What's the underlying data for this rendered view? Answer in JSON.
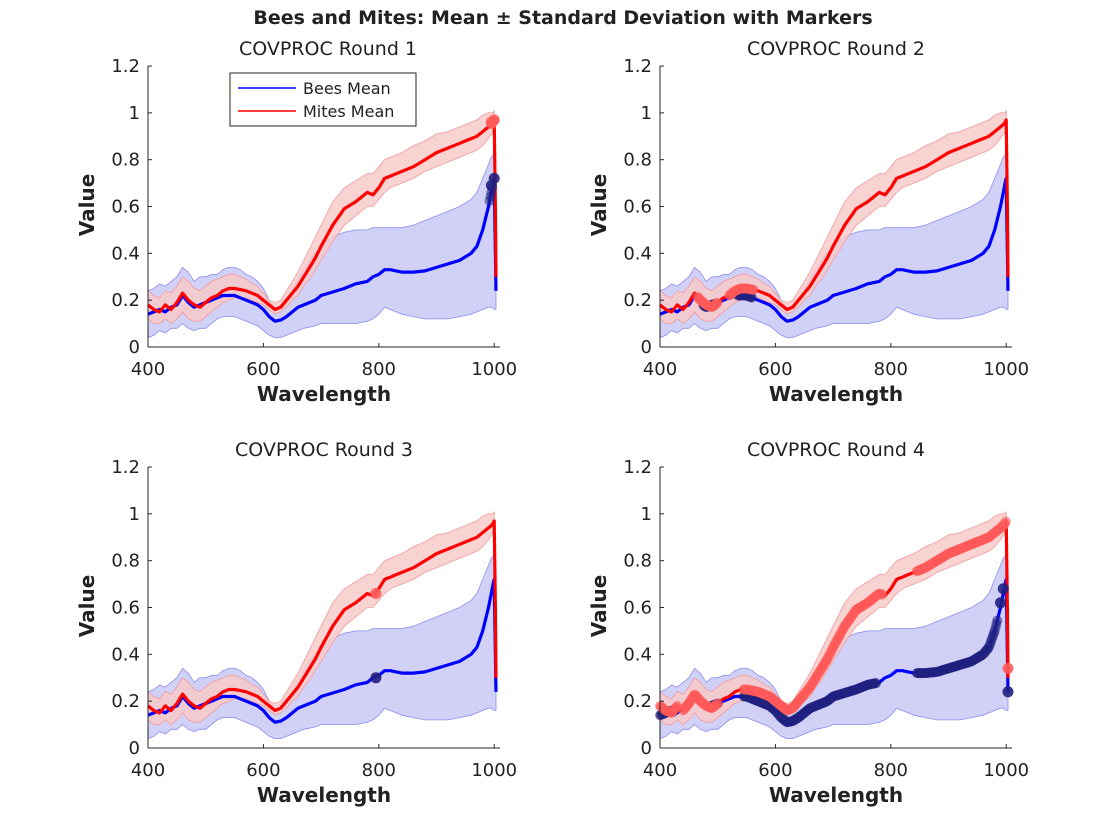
{
  "chart_data": {
    "type": "line",
    "suptitle": "Bees and Mites: Mean ± Standard Deviation with Markers",
    "xlabel": "Wavelength",
    "ylabel": "Value",
    "xlim": [
      400,
      1010
    ],
    "ylim": [
      0,
      1.2
    ],
    "x_ticks": [
      "400",
      "600",
      "800",
      "1000"
    ],
    "y_ticks": [
      "0",
      "0.2",
      "0.4",
      "0.6",
      "0.8",
      "1",
      "1.2"
    ],
    "legend": {
      "placement": "top-left",
      "entries": [
        "Bees Mean",
        "Mites Mean"
      ]
    },
    "colors": {
      "bees": "#0000ff",
      "bees_band": "#c9c9f7",
      "bees_band_edge": "#8c8cee",
      "bees_marker": "#202080",
      "mites": "#ff0000",
      "mites_band": "#f8caca",
      "mites_band_edge": "#f19a9a",
      "mites_marker": "#ff5a5a",
      "axis": "#262626"
    },
    "series": [
      {
        "name": "Bees Mean",
        "x": [
          400,
          410,
          420,
          430,
          440,
          450,
          460,
          470,
          480,
          490,
          500,
          510,
          520,
          530,
          540,
          550,
          560,
          570,
          580,
          590,
          600,
          610,
          620,
          630,
          640,
          650,
          660,
          670,
          680,
          690,
          700,
          720,
          740,
          760,
          780,
          790,
          800,
          810,
          820,
          830,
          840,
          860,
          880,
          900,
          920,
          940,
          960,
          970,
          980,
          990,
          995,
          998,
          1000,
          1002,
          1003
        ],
        "mean": [
          0.14,
          0.15,
          0.16,
          0.15,
          0.17,
          0.18,
          0.22,
          0.19,
          0.17,
          0.18,
          0.19,
          0.2,
          0.21,
          0.22,
          0.22,
          0.22,
          0.21,
          0.2,
          0.19,
          0.18,
          0.16,
          0.13,
          0.11,
          0.115,
          0.13,
          0.15,
          0.17,
          0.18,
          0.19,
          0.2,
          0.22,
          0.235,
          0.25,
          0.27,
          0.28,
          0.3,
          0.31,
          0.33,
          0.33,
          0.325,
          0.32,
          0.32,
          0.325,
          0.34,
          0.355,
          0.37,
          0.4,
          0.43,
          0.5,
          0.6,
          0.66,
          0.7,
          0.72,
          0.4,
          0.24
        ],
        "lower": [
          0.04,
          0.05,
          0.07,
          0.06,
          0.08,
          0.08,
          0.1,
          0.08,
          0.07,
          0.08,
          0.08,
          0.1,
          0.12,
          0.13,
          0.13,
          0.13,
          0.12,
          0.11,
          0.1,
          0.09,
          0.07,
          0.05,
          0.04,
          0.04,
          0.05,
          0.06,
          0.07,
          0.08,
          0.085,
          0.09,
          0.1,
          0.1,
          0.1,
          0.1,
          0.11,
          0.12,
          0.14,
          0.17,
          0.16,
          0.15,
          0.14,
          0.13,
          0.12,
          0.12,
          0.12,
          0.13,
          0.14,
          0.15,
          0.16,
          0.17,
          0.17,
          0.165,
          0.16,
          0.16,
          0.16
        ],
        "upper": [
          0.24,
          0.25,
          0.27,
          0.26,
          0.28,
          0.3,
          0.34,
          0.32,
          0.28,
          0.3,
          0.3,
          0.31,
          0.31,
          0.33,
          0.34,
          0.34,
          0.33,
          0.31,
          0.3,
          0.28,
          0.25,
          0.2,
          0.17,
          0.17,
          0.19,
          0.24,
          0.29,
          0.33,
          0.37,
          0.4,
          0.43,
          0.47,
          0.49,
          0.5,
          0.5,
          0.51,
          0.51,
          0.51,
          0.51,
          0.51,
          0.51,
          0.52,
          0.54,
          0.56,
          0.58,
          0.6,
          0.63,
          0.66,
          0.72,
          0.78,
          0.81,
          0.82,
          0.8,
          0.55,
          0.32
        ]
      },
      {
        "name": "Mites Mean",
        "x": [
          400,
          410,
          420,
          430,
          440,
          450,
          460,
          470,
          480,
          490,
          500,
          510,
          520,
          530,
          540,
          550,
          560,
          570,
          580,
          590,
          600,
          610,
          620,
          630,
          640,
          650,
          660,
          670,
          680,
          690,
          700,
          720,
          740,
          760,
          780,
          790,
          800,
          810,
          820,
          830,
          840,
          860,
          880,
          900,
          920,
          940,
          960,
          970,
          980,
          990,
          995,
          998,
          1000,
          1002,
          1003
        ],
        "mean": [
          0.18,
          0.16,
          0.15,
          0.18,
          0.16,
          0.19,
          0.23,
          0.2,
          0.18,
          0.17,
          0.19,
          0.21,
          0.22,
          0.24,
          0.25,
          0.25,
          0.245,
          0.24,
          0.23,
          0.22,
          0.2,
          0.18,
          0.16,
          0.17,
          0.2,
          0.23,
          0.26,
          0.3,
          0.34,
          0.38,
          0.43,
          0.52,
          0.59,
          0.62,
          0.66,
          0.65,
          0.68,
          0.72,
          0.73,
          0.74,
          0.75,
          0.77,
          0.8,
          0.83,
          0.85,
          0.87,
          0.89,
          0.9,
          0.92,
          0.94,
          0.95,
          0.96,
          0.97,
          0.6,
          0.3
        ],
        "lower": [
          0.12,
          0.1,
          0.1,
          0.12,
          0.1,
          0.12,
          0.15,
          0.12,
          0.11,
          0.11,
          0.13,
          0.15,
          0.17,
          0.19,
          0.2,
          0.21,
          0.21,
          0.21,
          0.2,
          0.19,
          0.18,
          0.16,
          0.14,
          0.15,
          0.17,
          0.2,
          0.22,
          0.26,
          0.29,
          0.33,
          0.37,
          0.45,
          0.52,
          0.56,
          0.6,
          0.6,
          0.63,
          0.66,
          0.68,
          0.69,
          0.7,
          0.72,
          0.75,
          0.77,
          0.79,
          0.81,
          0.83,
          0.84,
          0.86,
          0.89,
          0.91,
          0.92,
          0.93,
          0.55,
          0.26
        ],
        "upper": [
          0.24,
          0.22,
          0.21,
          0.24,
          0.23,
          0.26,
          0.3,
          0.28,
          0.25,
          0.24,
          0.26,
          0.28,
          0.29,
          0.3,
          0.31,
          0.31,
          0.3,
          0.29,
          0.27,
          0.26,
          0.23,
          0.2,
          0.19,
          0.2,
          0.24,
          0.28,
          0.32,
          0.37,
          0.42,
          0.47,
          0.52,
          0.62,
          0.68,
          0.71,
          0.74,
          0.74,
          0.77,
          0.8,
          0.81,
          0.82,
          0.83,
          0.86,
          0.88,
          0.91,
          0.92,
          0.94,
          0.96,
          0.97,
          0.99,
          1.0,
          1.0,
          1.0,
          1.01,
          0.66,
          0.36
        ]
      }
    ],
    "panels": [
      {
        "title": "COVPROC Round 1",
        "show_legend": true,
        "bees_marker_ranges": [
          [
            992,
            997
          ]
        ],
        "bees_markers": [
          [
            995,
            0.69
          ],
          [
            1000,
            0.72
          ]
        ],
        "mites_marker_ranges": [
          [
            995,
            1000
          ]
        ],
        "mites_markers": [
          [
            995,
            0.96
          ],
          [
            1000,
            0.97
          ]
        ]
      },
      {
        "title": "COVPROC Round 2",
        "show_legend": false,
        "bees_marker_ranges": [
          [
            475,
            493
          ],
          [
            535,
            560
          ]
        ],
        "bees_markers": [],
        "mites_marker_ranges": [
          [
            465,
            500
          ],
          [
            520,
            562
          ]
        ],
        "mites_markers": []
      },
      {
        "title": "COVPROC Round 3",
        "show_legend": false,
        "bees_marker_ranges": [],
        "bees_markers": [
          [
            795,
            0.3
          ]
        ],
        "mites_marker_ranges": [],
        "mites_markers": [
          [
            795,
            0.66
          ]
        ]
      },
      {
        "title": "COVPROC Round 4",
        "show_legend": false,
        "bees_marker_ranges": [
          [
            400,
            425
          ],
          [
            485,
            500
          ],
          [
            545,
            775
          ],
          [
            845,
            985
          ]
        ],
        "bees_markers": [
          [
            990,
            0.62
          ],
          [
            995,
            0.68
          ],
          [
            1003,
            0.24
          ]
        ],
        "mites_marker_ranges": [
          [
            400,
            430
          ],
          [
            440,
            500
          ],
          [
            545,
            785
          ],
          [
            845,
            1000
          ]
        ],
        "mites_markers": [
          [
            1003,
            0.34
          ]
        ]
      }
    ]
  }
}
